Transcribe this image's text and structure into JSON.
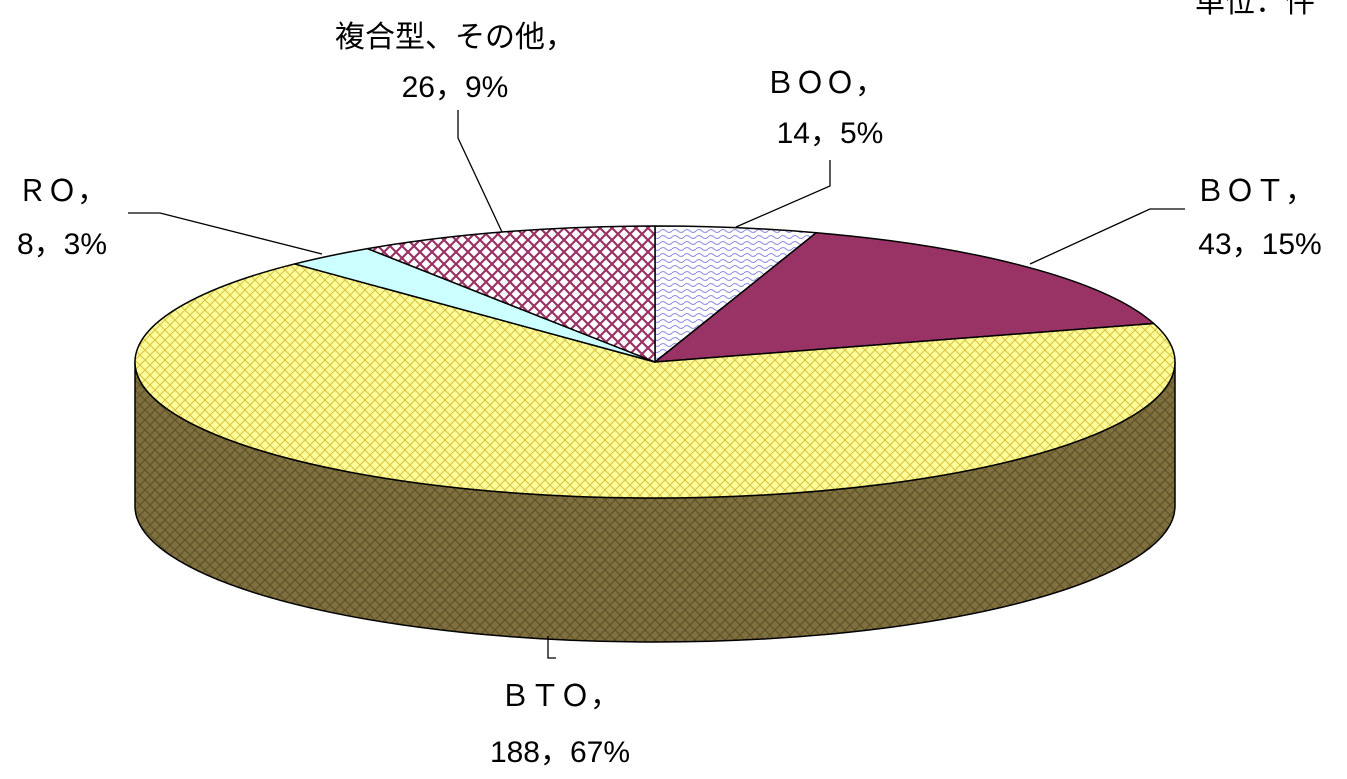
{
  "chart_data": {
    "type": "pie",
    "style": "3d",
    "title": "",
    "corner_label": "単位：件",
    "slices": [
      {
        "name": "ＢＯＯ",
        "value": 14,
        "percent": "5%",
        "color": "#c8c8f4",
        "pattern": "wave",
        "label_lines": [
          "ＢＯＯ，",
          "14，5%"
        ]
      },
      {
        "name": "ＢＯＴ",
        "value": 43,
        "percent": "15%",
        "color": "#993366",
        "pattern": "solid",
        "label_lines": [
          "ＢＯＴ，",
          "43，15%"
        ]
      },
      {
        "name": "ＢＴＯ",
        "value": 188,
        "percent": "67%",
        "color": "#ffff99",
        "pattern": "weave",
        "label_lines": [
          "ＢＴＯ，",
          "188，67%"
        ]
      },
      {
        "name": "ＲＯ",
        "value": 8,
        "percent": "3%",
        "color": "#ccffff",
        "pattern": "solid",
        "label_lines": [
          "ＲＯ，",
          "8，3%"
        ]
      },
      {
        "name": "複合型、その他",
        "value": 26,
        "percent": "9%",
        "color": "#993366",
        "pattern": "diagonal-cross",
        "label_lines": [
          "複合型、その他，",
          "26，9%"
        ]
      }
    ],
    "side_color": "#807040",
    "legend": "none"
  }
}
